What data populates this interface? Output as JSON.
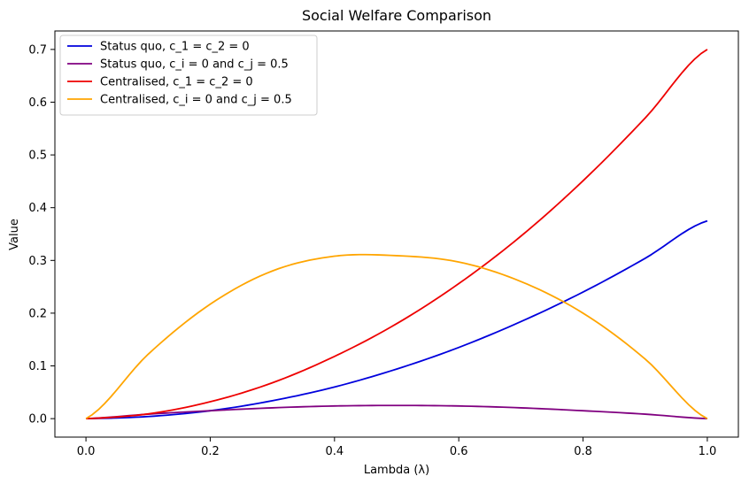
{
  "chart_data": {
    "type": "line",
    "title": "Social Welfare Comparison",
    "xlabel": "Lambda (λ)",
    "ylabel": "Value",
    "xlim": [
      -0.05,
      1.05
    ],
    "ylim": [
      -0.035,
      0.735
    ],
    "x_ticks": [
      0.0,
      0.2,
      0.4,
      0.6,
      0.8,
      1.0
    ],
    "x_tick_labels": [
      "0.0",
      "0.2",
      "0.4",
      "0.6",
      "0.8",
      "1.0"
    ],
    "y_ticks": [
      0.0,
      0.1,
      0.2,
      0.3,
      0.4,
      0.5,
      0.6,
      0.7
    ],
    "y_tick_labels": [
      "0.0",
      "0.1",
      "0.2",
      "0.3",
      "0.4",
      "0.5",
      "0.6",
      "0.7"
    ],
    "grid": false,
    "legend_position": "top-left",
    "x": [
      0.0,
      0.1,
      0.2,
      0.3,
      0.4,
      0.5,
      0.6,
      0.7,
      0.8,
      0.9,
      1.0
    ],
    "series": [
      {
        "name": "Status quo, c_1 = c_2 = 0",
        "color": "#0000dd",
        "values": [
          0.0,
          0.004,
          0.015,
          0.034,
          0.06,
          0.094,
          0.135,
          0.184,
          0.24,
          0.304,
          0.375
        ]
      },
      {
        "name": "Status quo, c_i = 0 and c_j = 0.5",
        "color": "#800080",
        "values": [
          0.0,
          0.0085,
          0.015,
          0.0205,
          0.024,
          0.025,
          0.024,
          0.0205,
          0.015,
          0.0085,
          0.0
        ]
      },
      {
        "name": "Centralised, c_1 = c_2 = 0",
        "color": "#ee0000",
        "values": [
          0.0,
          0.009,
          0.032,
          0.068,
          0.118,
          0.18,
          0.256,
          0.346,
          0.451,
          0.57,
          0.7
        ]
      },
      {
        "name": "Centralised, c_i = 0 and c_j = 0.5",
        "color": "#ffa500",
        "values": [
          0.0,
          0.122,
          0.217,
          0.28,
          0.308,
          0.309,
          0.297,
          0.26,
          0.2,
          0.113,
          0.0
        ]
      }
    ]
  }
}
